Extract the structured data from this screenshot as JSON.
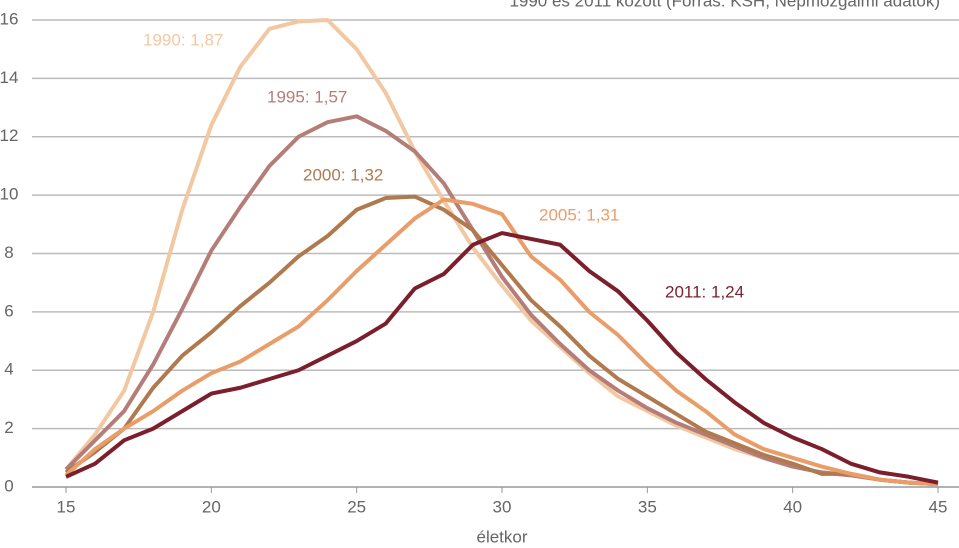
{
  "chart_data": {
    "type": "line",
    "subtitle": "1990 és 2011 között (Forrás: KSH, Népmozgalmi adatok)",
    "xlabel": "életkor",
    "x": [
      15,
      16,
      17,
      18,
      19,
      20,
      21,
      22,
      23,
      24,
      25,
      26,
      27,
      28,
      29,
      30,
      31,
      32,
      33,
      34,
      35,
      36,
      37,
      38,
      39,
      40,
      41,
      42,
      43,
      44,
      45
    ],
    "xlim": [
      15,
      45
    ],
    "xticks": [
      15,
      20,
      25,
      30,
      35,
      40,
      45
    ],
    "ylim": [
      0,
      16
    ],
    "yticks": [
      0,
      2,
      4,
      6,
      8,
      10,
      12,
      14,
      16
    ],
    "grid": true,
    "series": [
      {
        "name": "1990",
        "color": "#f2c8a2",
        "values": [
          0.6,
          1.8,
          3.3,
          6.0,
          9.5,
          12.4,
          14.4,
          15.7,
          15.95,
          16.0,
          15.0,
          13.5,
          11.5,
          9.8,
          8.2,
          6.9,
          5.7,
          4.8,
          3.9,
          3.1,
          2.6,
          2.1,
          1.7,
          1.3,
          1.0,
          0.7,
          0.5,
          0.4,
          0.25,
          0.15,
          0.1
        ]
      },
      {
        "name": "1995",
        "color": "#b57d78",
        "values": [
          0.6,
          1.6,
          2.6,
          4.2,
          6.1,
          8.1,
          9.6,
          11.0,
          12.0,
          12.5,
          12.7,
          12.2,
          11.5,
          10.4,
          8.8,
          7.2,
          5.9,
          4.9,
          4.0,
          3.3,
          2.7,
          2.2,
          1.8,
          1.4,
          1.0,
          0.7,
          0.5,
          0.4,
          0.25,
          0.15,
          0.1
        ]
      },
      {
        "name": "2000",
        "color": "#b07a4e",
        "values": [
          0.5,
          1.2,
          2.0,
          3.4,
          4.5,
          5.3,
          6.2,
          7.0,
          7.9,
          8.6,
          9.5,
          9.9,
          9.95,
          9.5,
          8.8,
          7.6,
          6.4,
          5.5,
          4.5,
          3.7,
          3.1,
          2.5,
          1.9,
          1.5,
          1.1,
          0.8,
          0.45,
          0.45,
          0.25,
          0.15,
          0.1
        ]
      },
      {
        "name": "2005",
        "color": "#e99d69",
        "values": [
          0.4,
          1.3,
          2.0,
          2.6,
          3.3,
          3.9,
          4.3,
          4.9,
          5.5,
          6.4,
          7.4,
          8.3,
          9.2,
          9.85,
          9.7,
          9.35,
          7.9,
          7.1,
          6.0,
          5.2,
          4.2,
          3.3,
          2.6,
          1.8,
          1.3,
          1.0,
          0.7,
          0.45,
          0.25,
          0.15,
          0.1
        ]
      },
      {
        "name": "2011",
        "color": "#7b1f2d",
        "values": [
          0.35,
          0.8,
          1.6,
          2.0,
          2.6,
          3.2,
          3.4,
          3.7,
          4.0,
          4.5,
          5.0,
          5.6,
          6.8,
          7.3,
          8.3,
          8.7,
          8.5,
          8.3,
          7.4,
          6.7,
          5.7,
          4.6,
          3.7,
          2.9,
          2.2,
          1.7,
          1.3,
          0.8,
          0.5,
          0.35,
          0.15
        ]
      }
    ],
    "annotations": [
      "1990: 1,87",
      "1995: 1,57",
      "2000: 1,32",
      "2005: 1,31",
      "2011: 1,24"
    ]
  }
}
